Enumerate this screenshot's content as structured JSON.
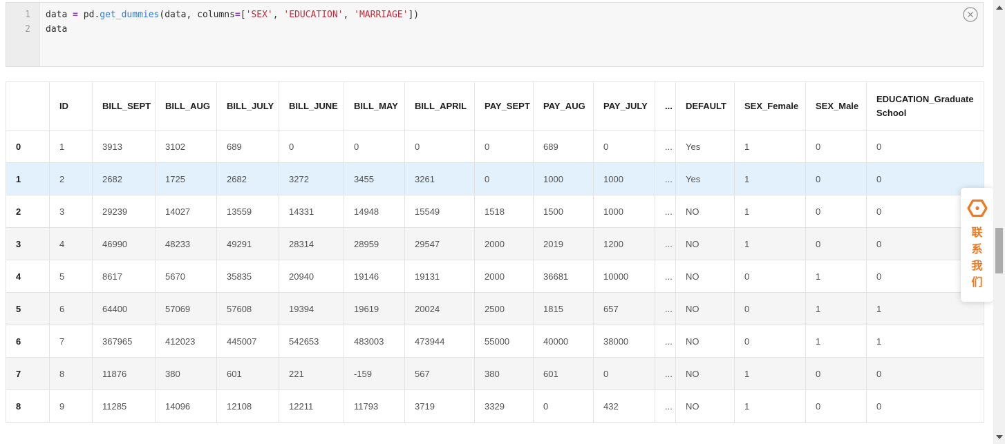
{
  "theme": {
    "accent_orange": "#f0781e",
    "row_highlight": "#e2f1fb",
    "row_striped": "#f5f5f5",
    "operator_color": "#a62fd1",
    "function_color": "#2f7bd9",
    "string_color": "#c22838"
  },
  "code_cell": {
    "lines": [
      {
        "number": "1",
        "tokens": [
          {
            "text": "data ",
            "type": "plain"
          },
          {
            "text": "=",
            "type": "op"
          },
          {
            "text": " pd.",
            "type": "plain"
          },
          {
            "text": "get_dummies",
            "type": "func"
          },
          {
            "text": "(data, columns",
            "type": "plain"
          },
          {
            "text": "=",
            "type": "op"
          },
          {
            "text": "[",
            "type": "plain"
          },
          {
            "text": "'SEX'",
            "type": "str"
          },
          {
            "text": ", ",
            "type": "plain"
          },
          {
            "text": "'EDUCATION'",
            "type": "str"
          },
          {
            "text": ", ",
            "type": "plain"
          },
          {
            "text": "'MARRIAGE'",
            "type": "str"
          },
          {
            "text": "])",
            "type": "plain"
          }
        ]
      },
      {
        "number": "2",
        "tokens": [
          {
            "text": "data",
            "type": "plain"
          }
        ]
      }
    ]
  },
  "table": {
    "columns": [
      "",
      "ID",
      "BILL_SEPT",
      "BILL_AUG",
      "BILL_JULY",
      "BILL_JUNE",
      "BILL_MAY",
      "BILL_APRIL",
      "PAY_SEPT",
      "PAY_AUG",
      "PAY_JULY",
      "...",
      "DEFAULT",
      "SEX_Female",
      "SEX_Male",
      "EDUCATION_Graduate School"
    ],
    "highlighted_row": 1,
    "rows": [
      {
        "index": "0",
        "cells": [
          "1",
          "3913",
          "3102",
          "689",
          "0",
          "0",
          "0",
          "0",
          "689",
          "0",
          "...",
          "Yes",
          "1",
          "0",
          "0"
        ]
      },
      {
        "index": "1",
        "cells": [
          "2",
          "2682",
          "1725",
          "2682",
          "3272",
          "3455",
          "3261",
          "0",
          "1000",
          "1000",
          "...",
          "Yes",
          "1",
          "0",
          "0"
        ]
      },
      {
        "index": "2",
        "cells": [
          "3",
          "29239",
          "14027",
          "13559",
          "14331",
          "14948",
          "15549",
          "1518",
          "1500",
          "1000",
          "...",
          "NO",
          "1",
          "0",
          "0"
        ]
      },
      {
        "index": "3",
        "cells": [
          "4",
          "46990",
          "48233",
          "49291",
          "28314",
          "28959",
          "29547",
          "2000",
          "2019",
          "1200",
          "...",
          "NO",
          "1",
          "0",
          "0"
        ]
      },
      {
        "index": "4",
        "cells": [
          "5",
          "8617",
          "5670",
          "35835",
          "20940",
          "19146",
          "19131",
          "2000",
          "36681",
          "10000",
          "...",
          "NO",
          "0",
          "1",
          "0"
        ]
      },
      {
        "index": "5",
        "cells": [
          "6",
          "64400",
          "57069",
          "57608",
          "19394",
          "19619",
          "20024",
          "2500",
          "1815",
          "657",
          "...",
          "NO",
          "0",
          "1",
          "1"
        ]
      },
      {
        "index": "6",
        "cells": [
          "7",
          "367965",
          "412023",
          "445007",
          "542653",
          "483003",
          "473944",
          "55000",
          "40000",
          "38000",
          "...",
          "NO",
          "0",
          "1",
          "1"
        ]
      },
      {
        "index": "7",
        "cells": [
          "8",
          "11876",
          "380",
          "601",
          "221",
          "-159",
          "567",
          "380",
          "601",
          "0",
          "...",
          "NO",
          "1",
          "0",
          "0"
        ]
      },
      {
        "index": "8",
        "cells": [
          "9",
          "11285",
          "14096",
          "12108",
          "12211",
          "11793",
          "3719",
          "3329",
          "0",
          "432",
          "...",
          "NO",
          "1",
          "0",
          "0"
        ]
      }
    ]
  },
  "contact_badge": {
    "label": "联系我们",
    "chars": [
      "联",
      "系",
      "我",
      "们"
    ]
  }
}
